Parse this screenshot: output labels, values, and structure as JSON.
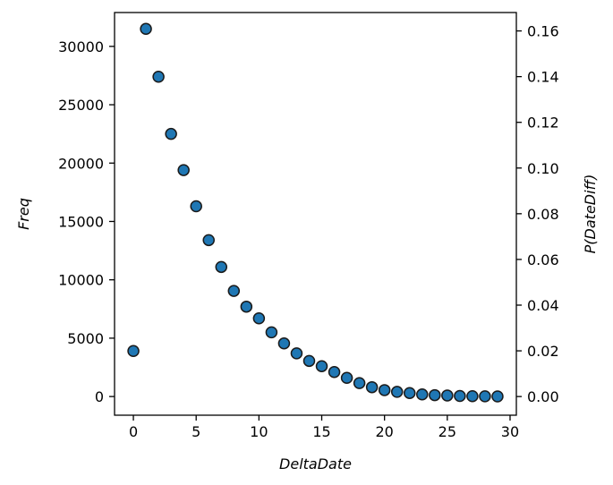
{
  "chart_data": {
    "type": "scatter",
    "xlabel": "DeltaDate",
    "ylabel": "Freq",
    "y2label": "P(DateDiff)",
    "xlim": [
      -1.5,
      30.5
    ],
    "ylim": [
      -1600,
      32900
    ],
    "y2lim": [
      -0.00817,
      0.16805
    ],
    "xticks": [
      0,
      5,
      10,
      15,
      20,
      25,
      30
    ],
    "yticks": [
      0,
      5000,
      10000,
      15000,
      20000,
      25000,
      30000
    ],
    "y2ticks": [
      "0.00",
      "0.02",
      "0.04",
      "0.06",
      "0.08",
      "0.10",
      "0.12",
      "0.14",
      "0.16"
    ],
    "grid": false,
    "marker_color": "#1f77b4",
    "x": [
      0,
      1,
      2,
      3,
      4,
      5,
      6,
      7,
      8,
      9,
      10,
      11,
      12,
      13,
      14,
      15,
      16,
      17,
      18,
      19,
      20,
      21,
      22,
      23,
      24,
      25,
      26,
      27,
      28,
      29
    ],
    "y": [
      3900,
      31500,
      27400,
      22500,
      19400,
      16300,
      13400,
      11100,
      9050,
      7700,
      6700,
      5500,
      4550,
      3700,
      3050,
      2600,
      2100,
      1600,
      1150,
      800,
      550,
      400,
      300,
      180,
      120,
      90,
      50,
      30,
      20,
      10
    ]
  }
}
